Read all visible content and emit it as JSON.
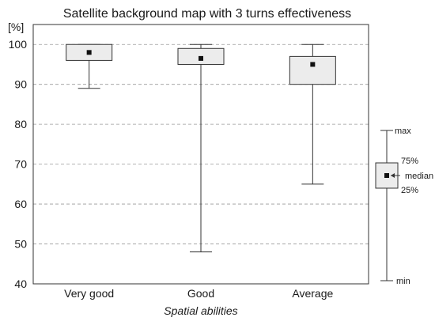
{
  "chart_data": {
    "type": "boxplot",
    "title": "Satellite background map with 3 turns effectiveness",
    "ylabel": "[%]",
    "xlabel": "Spatial abilities",
    "ylim": [
      40,
      105
    ],
    "yticks": [
      40,
      50,
      60,
      70,
      80,
      90,
      100
    ],
    "grid": "horizontal dashed",
    "categories": [
      "Very good",
      "Good",
      "Average"
    ],
    "boxes": [
      {
        "category": "Very good",
        "min": 89,
        "q1": 96,
        "median": 98,
        "q3": 100,
        "max": 100
      },
      {
        "category": "Good",
        "min": 48,
        "q1": 95,
        "median": 96.5,
        "q3": 99,
        "max": 100
      },
      {
        "category": "Average",
        "min": 65,
        "q1": 90,
        "median": 95,
        "q3": 97,
        "max": 100
      }
    ],
    "legend": {
      "placement": "right",
      "labels": {
        "max": "max",
        "q3": "75%",
        "median": "median",
        "q1": "25%",
        "min": "min"
      }
    },
    "colors": {
      "box_fill": "#ececec",
      "line": "#333333",
      "grid": "#9a9a9a",
      "median": "#111111"
    }
  }
}
